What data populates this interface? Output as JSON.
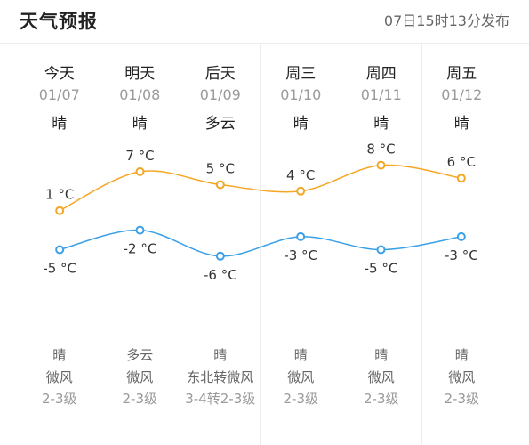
{
  "header": {
    "title": "天气预报",
    "publish_time": "07日15时13分发布"
  },
  "days": [
    {
      "day": "今天",
      "date": "01/07",
      "weather_day": "晴",
      "weather_night": "晴",
      "wind_dir": "微风",
      "wind_level": "2-3级"
    },
    {
      "day": "明天",
      "date": "01/08",
      "weather_day": "晴",
      "weather_night": "多云",
      "wind_dir": "微风",
      "wind_level": "2-3级"
    },
    {
      "day": "后天",
      "date": "01/09",
      "weather_day": "多云",
      "weather_night": "晴",
      "wind_dir": "东北转微风",
      "wind_level": "3-4转2-3级"
    },
    {
      "day": "周三",
      "date": "01/10",
      "weather_day": "晴",
      "weather_night": "晴",
      "wind_dir": "微风",
      "wind_level": "2-3级"
    },
    {
      "day": "周四",
      "date": "01/11",
      "weather_day": "晴",
      "weather_night": "晴",
      "wind_dir": "微风",
      "wind_level": "2-3级"
    },
    {
      "day": "周五",
      "date": "01/12",
      "weather_day": "晴",
      "weather_night": "晴",
      "wind_dir": "微风",
      "wind_level": "2-3级"
    }
  ],
  "chart_data": {
    "type": "line",
    "categories": [
      "01/07",
      "01/08",
      "01/09",
      "01/10",
      "01/11",
      "01/12"
    ],
    "unit": "°C",
    "series": [
      {
        "values": [
          1,
          7,
          5,
          4,
          8,
          6
        ],
        "color": "#f5a623"
      },
      {
        "values": [
          -5,
          -2,
          -6,
          -3,
          -5,
          -3
        ],
        "color": "#3aa0e8"
      }
    ]
  },
  "colors": {
    "high": "#f5a623",
    "low": "#3aa0e8",
    "divider": "#ededed"
  }
}
